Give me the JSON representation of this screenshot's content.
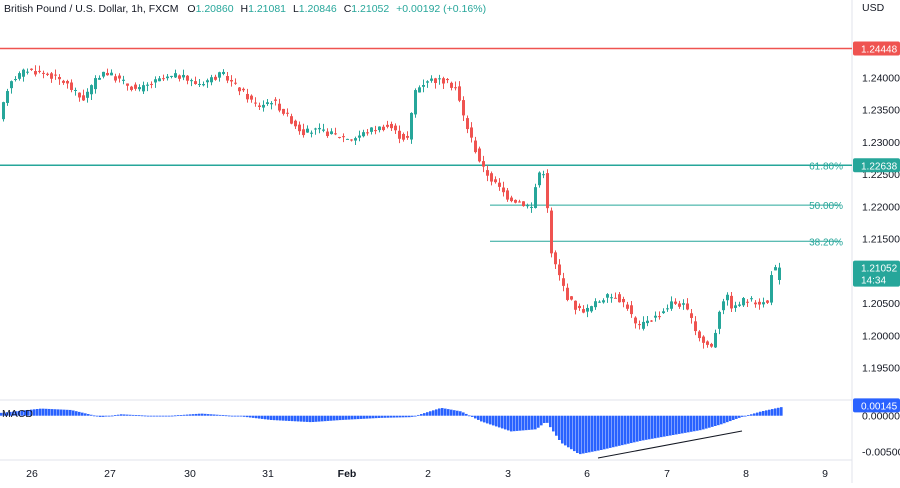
{
  "header": {
    "symbol": "British Pound / U.S. Dollar, 1h, FXCM",
    "open_label": "O",
    "open": "1.20860",
    "high_label": "H",
    "high": "1.21081",
    "low_label": "L",
    "low": "1.20846",
    "close_label": "C",
    "close": "1.21052",
    "change": "+0.00192 (+0.16%)"
  },
  "currency": "USD",
  "colors": {
    "up": "#26a69a",
    "down": "#ef5350",
    "resistance": "#ef5350",
    "fib": "#26a69a",
    "macd": "#2962ff",
    "trendline": "#131722"
  },
  "price_axis": {
    "ylim": [
      1.19,
      1.252
    ],
    "ticks": [
      "1.24000",
      "1.23500",
      "1.23000",
      "1.22500",
      "1.22000",
      "1.21500",
      "1.21000",
      "1.20500",
      "1.20000",
      "1.19500"
    ]
  },
  "time_axis": {
    "labels": [
      "26",
      "27",
      "30",
      "31",
      "Feb",
      "2",
      "3",
      "6",
      "7",
      "8",
      "9"
    ]
  },
  "badges": {
    "resistance": "1.24448",
    "fib_618": "1.22638",
    "last_price": "1.21052",
    "countdown": "14:34",
    "macd_value": "0.00145"
  },
  "levels": {
    "resistance": 1.24448,
    "fib_618": 1.22638,
    "fib_50": 1.2202,
    "fib_382": 1.2146
  },
  "fib_labels": {
    "fib_618": "61.80%",
    "fib_50": "50.00%",
    "fib_382": "38.20%"
  },
  "macd": {
    "label": "MACD",
    "ylim": [
      -0.0062,
      0.0022
    ],
    "ticks": [
      "0.00000",
      "-0.00500"
    ]
  },
  "chart_data": [
    {
      "type": "candlestick",
      "title": "",
      "xlabel": "",
      "ylabel": "",
      "x": [
        "26",
        "27",
        "30",
        "31",
        "Feb",
        "2",
        "3",
        "6",
        "7",
        "8"
      ],
      "ylim": [
        1.19,
        1.252
      ],
      "grid": false,
      "path": [
        [
          0,
          1.232
        ],
        [
          12,
          1.2395
        ],
        [
          30,
          1.2412
        ],
        [
          50,
          1.2405
        ],
        [
          68,
          1.2392
        ],
        [
          85,
          1.2365
        ],
        [
          105,
          1.241
        ],
        [
          120,
          1.2398
        ],
        [
          140,
          1.238
        ],
        [
          160,
          1.2395
        ],
        [
          180,
          1.2403
        ],
        [
          200,
          1.239
        ],
        [
          225,
          1.2405
        ],
        [
          240,
          1.2385
        ],
        [
          260,
          1.2355
        ],
        [
          275,
          1.2365
        ],
        [
          290,
          1.234
        ],
        [
          305,
          1.2315
        ],
        [
          320,
          1.2318
        ],
        [
          340,
          1.231
        ],
        [
          355,
          1.2305
        ],
        [
          375,
          1.232
        ],
        [
          392,
          1.2325
        ],
        [
          403,
          1.2308
        ],
        [
          410,
          1.2305
        ],
        [
          418,
          1.238
        ],
        [
          430,
          1.2397
        ],
        [
          445,
          1.2395
        ],
        [
          458,
          1.2385
        ],
        [
          466,
          1.234
        ],
        [
          475,
          1.23
        ],
        [
          485,
          1.226
        ],
        [
          495,
          1.224
        ],
        [
          510,
          1.2215
        ],
        [
          525,
          1.2205
        ],
        [
          535,
          1.2198
        ],
        [
          540,
          1.2252
        ],
        [
          548,
          1.2255
        ],
        [
          552,
          1.2135
        ],
        [
          560,
          1.21
        ],
        [
          570,
          1.206
        ],
        [
          580,
          1.204
        ],
        [
          590,
          1.204
        ],
        [
          605,
          1.2058
        ],
        [
          618,
          1.2062
        ],
        [
          630,
          1.2045
        ],
        [
          640,
          1.201
        ],
        [
          650,
          1.2025
        ],
        [
          660,
          1.203
        ],
        [
          675,
          1.2052
        ],
        [
          688,
          1.2045
        ],
        [
          696,
          1.2015
        ],
        [
          705,
          1.199
        ],
        [
          715,
          1.1982
        ],
        [
          722,
          1.204
        ],
        [
          728,
          1.2065
        ],
        [
          736,
          1.204
        ],
        [
          745,
          1.2055
        ],
        [
          760,
          1.2052
        ],
        [
          770,
          1.205
        ],
        [
          774,
          1.2098
        ],
        [
          780,
          1.2105
        ]
      ],
      "last": {
        "open": 1.2086,
        "high": 1.21081,
        "low": 1.20846,
        "close": 1.21052
      }
    },
    {
      "type": "histogram",
      "title": "",
      "xlabel": "",
      "ylabel": "",
      "series": [
        {
          "name": "MACD"
        }
      ],
      "ylim": [
        -0.0062,
        0.0022
      ],
      "path": [
        [
          0,
          0.0004
        ],
        [
          40,
          0.001
        ],
        [
          70,
          0.0008
        ],
        [
          100,
          -0.0002
        ],
        [
          120,
          0.0002
        ],
        [
          160,
          -0.0001
        ],
        [
          200,
          0.0003
        ],
        [
          240,
          -0.0001
        ],
        [
          270,
          -0.0006
        ],
        [
          310,
          -0.0009
        ],
        [
          340,
          -0.0006
        ],
        [
          380,
          -0.0003
        ],
        [
          410,
          -0.0002
        ],
        [
          440,
          0.0011
        ],
        [
          460,
          0.0006
        ],
        [
          480,
          -0.0008
        ],
        [
          510,
          -0.0022
        ],
        [
          535,
          -0.0019
        ],
        [
          545,
          -0.0008
        ],
        [
          560,
          -0.0038
        ],
        [
          578,
          -0.0054
        ],
        [
          600,
          -0.0048
        ],
        [
          640,
          -0.0035
        ],
        [
          680,
          -0.0025
        ],
        [
          700,
          -0.002
        ],
        [
          720,
          -0.0012
        ],
        [
          740,
          -0.0002
        ],
        [
          760,
          0.0006
        ],
        [
          780,
          0.0012
        ]
      ]
    }
  ]
}
